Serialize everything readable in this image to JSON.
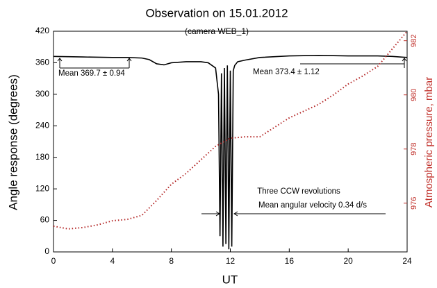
{
  "chart_data": {
    "type": "line",
    "title": "Observation on 15.01.2012",
    "subtitle": "(camera WEB_1)",
    "x_label": "UT",
    "y_label": "Angle response (degrees)",
    "y2_label": "Atmospheric pressure, mbar",
    "annotations": [
      "Mean 369.7 ± 0.94",
      "Mean 373.4 ± 1.12",
      "Three CCW revolutions",
      "Mean angular velocity 0.34 d/s"
    ],
    "xlim": [
      0,
      24
    ],
    "xticks": [
      0,
      4,
      8,
      12,
      16,
      20,
      24
    ],
    "ylim": [
      0,
      420
    ],
    "yticks": [
      0,
      60,
      120,
      180,
      240,
      300,
      360,
      420
    ],
    "y2lim": [
      974.2,
      982.35
    ],
    "y2ticks": [
      976,
      978,
      980,
      982
    ],
    "series": [
      {
        "color": "#000000",
        "axis": "y",
        "style": "solid",
        "x": [
          0,
          2,
          4,
          5,
          6,
          6.5,
          7,
          7.5,
          8,
          9,
          10,
          10.5,
          11,
          11.2,
          11.3,
          11.4,
          11.5,
          11.6,
          11.7,
          11.8,
          11.9,
          12.0,
          12.1,
          12.2,
          12.3,
          12.5,
          13,
          14,
          16,
          18,
          20,
          22,
          23,
          24
        ],
        "values": [
          372,
          371,
          370,
          370,
          369,
          366,
          358,
          356,
          360,
          362,
          362,
          360,
          350,
          300,
          30,
          340,
          10,
          350,
          15,
          355,
          5,
          345,
          10,
          345,
          355,
          362,
          365,
          370,
          373,
          374,
          373,
          373,
          372,
          370
        ]
      },
      {
        "color": "#b22222",
        "axis": "y2",
        "style": "dotted",
        "x": [
          0,
          1,
          2,
          3,
          4,
          5,
          6,
          7,
          8,
          9,
          10,
          11,
          12,
          13,
          14,
          15,
          16,
          17,
          18,
          19,
          20,
          21,
          22,
          23,
          24
        ],
        "values": [
          975.15,
          975.05,
          975.1,
          975.2,
          975.35,
          975.4,
          975.55,
          976.1,
          976.7,
          977.1,
          977.6,
          978.1,
          978.4,
          978.45,
          978.45,
          978.8,
          979.15,
          979.4,
          979.65,
          980.0,
          980.4,
          980.7,
          981.05,
          981.7,
          982.35
        ]
      }
    ]
  }
}
